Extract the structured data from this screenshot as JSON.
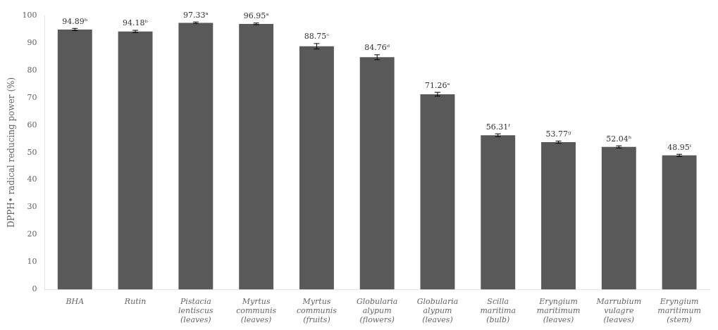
{
  "chart_data": {
    "type": "bar",
    "categories": [
      "BHA",
      "Rutin",
      "Pistacia\nlentiscus\n(leaves)",
      "Myrtus\ncommunis\n(leaves)",
      "Myrtus\ncommunis\n(fruits)",
      "Globularia\nalypum\n(flowers)",
      "Globularia\nalypum\n(leaves)",
      "Scilla\nmaritima\n(bulb)",
      "Eryngium\nmaritimum\n(leaves)",
      "Marrubium\nvulagre\n(leaves)",
      "Eryngium\nmaritimum\n(stem)"
    ],
    "values": [
      94.89,
      94.18,
      97.33,
      96.95,
      88.75,
      84.76,
      71.26,
      56.31,
      53.77,
      52.04,
      48.95
    ],
    "errors": [
      0.4,
      0.4,
      0.3,
      0.3,
      1.0,
      0.9,
      0.7,
      0.5,
      0.4,
      0.4,
      0.4
    ],
    "data_labels": true,
    "value_labels": [
      "94.89ᵇ",
      "94.18ᵇ",
      "97.33ᵃ",
      "96.95ᵃ",
      "88.75ᶜ",
      "84.76ᵈ",
      "71.26ᵉ",
      "56.31ᶠ",
      "53.77ᵍ",
      "52.04ʰ",
      "48.95ⁱ"
    ],
    "color": "#595959",
    "ylabel": "DPPH• radical reducing power (%)",
    "ylim": [
      0,
      100
    ],
    "yticks": [
      0,
      10,
      20,
      30,
      40,
      50,
      60,
      70,
      80,
      90,
      100
    ],
    "grid": false
  }
}
